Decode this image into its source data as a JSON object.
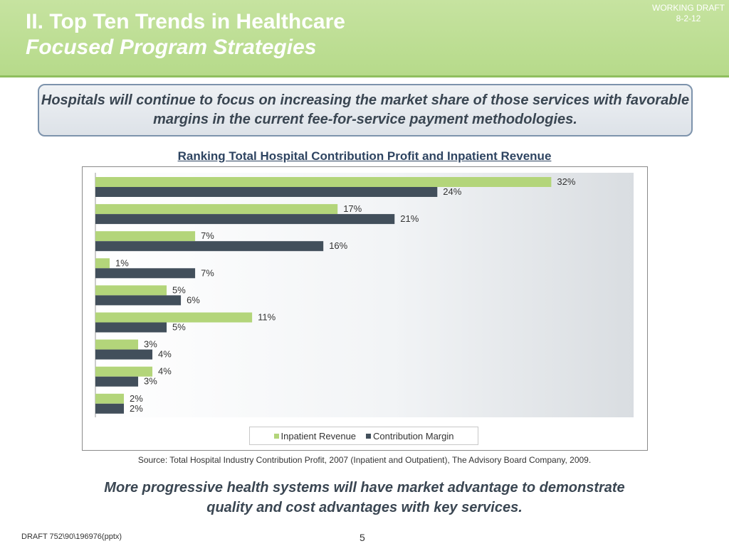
{
  "header": {
    "title_line1": "II.  Top Ten Trends in Healthcare",
    "title_line2": "Focused Program Strategies",
    "draft_label": "WORKING DRAFT",
    "draft_date": "8-2-12"
  },
  "callout": {
    "text": "Hospitals will continue to focus on increasing the market share of those services with favorable margins in the current fee-for-service payment methodologies."
  },
  "colors": {
    "inpatient": "#b3d57a",
    "contribution": "#424f5b"
  },
  "chart_data": {
    "type": "bar",
    "orientation": "horizontal",
    "title": "Ranking Total Hospital Contribution Profit and Inpatient Revenue",
    "categories": [
      "",
      "",
      "",
      "",
      "",
      "",
      "",
      "",
      ""
    ],
    "series": [
      {
        "name": "Inpatient Revenue",
        "values": [
          32,
          17,
          7,
          1,
          5,
          11,
          3,
          4,
          2
        ]
      },
      {
        "name": "Contribution Margin",
        "values": [
          24,
          21,
          16,
          7,
          6,
          5,
          4,
          3,
          2
        ]
      }
    ],
    "value_suffix": "%",
    "xlim": [
      0,
      34
    ],
    "legend_position": "bottom",
    "grid": false
  },
  "source": "Source:  Total Hospital Industry Contribution Profit, 2007 (Inpatient and Outpatient), The Advisory Board Company, 2009.",
  "conclusion": "More progressive health systems will have market advantage to demonstrate quality and cost advantages with key services.",
  "footer": {
    "draft_id": "DRAFT 752\\90\\196976(pptx)",
    "page_number": "5"
  }
}
